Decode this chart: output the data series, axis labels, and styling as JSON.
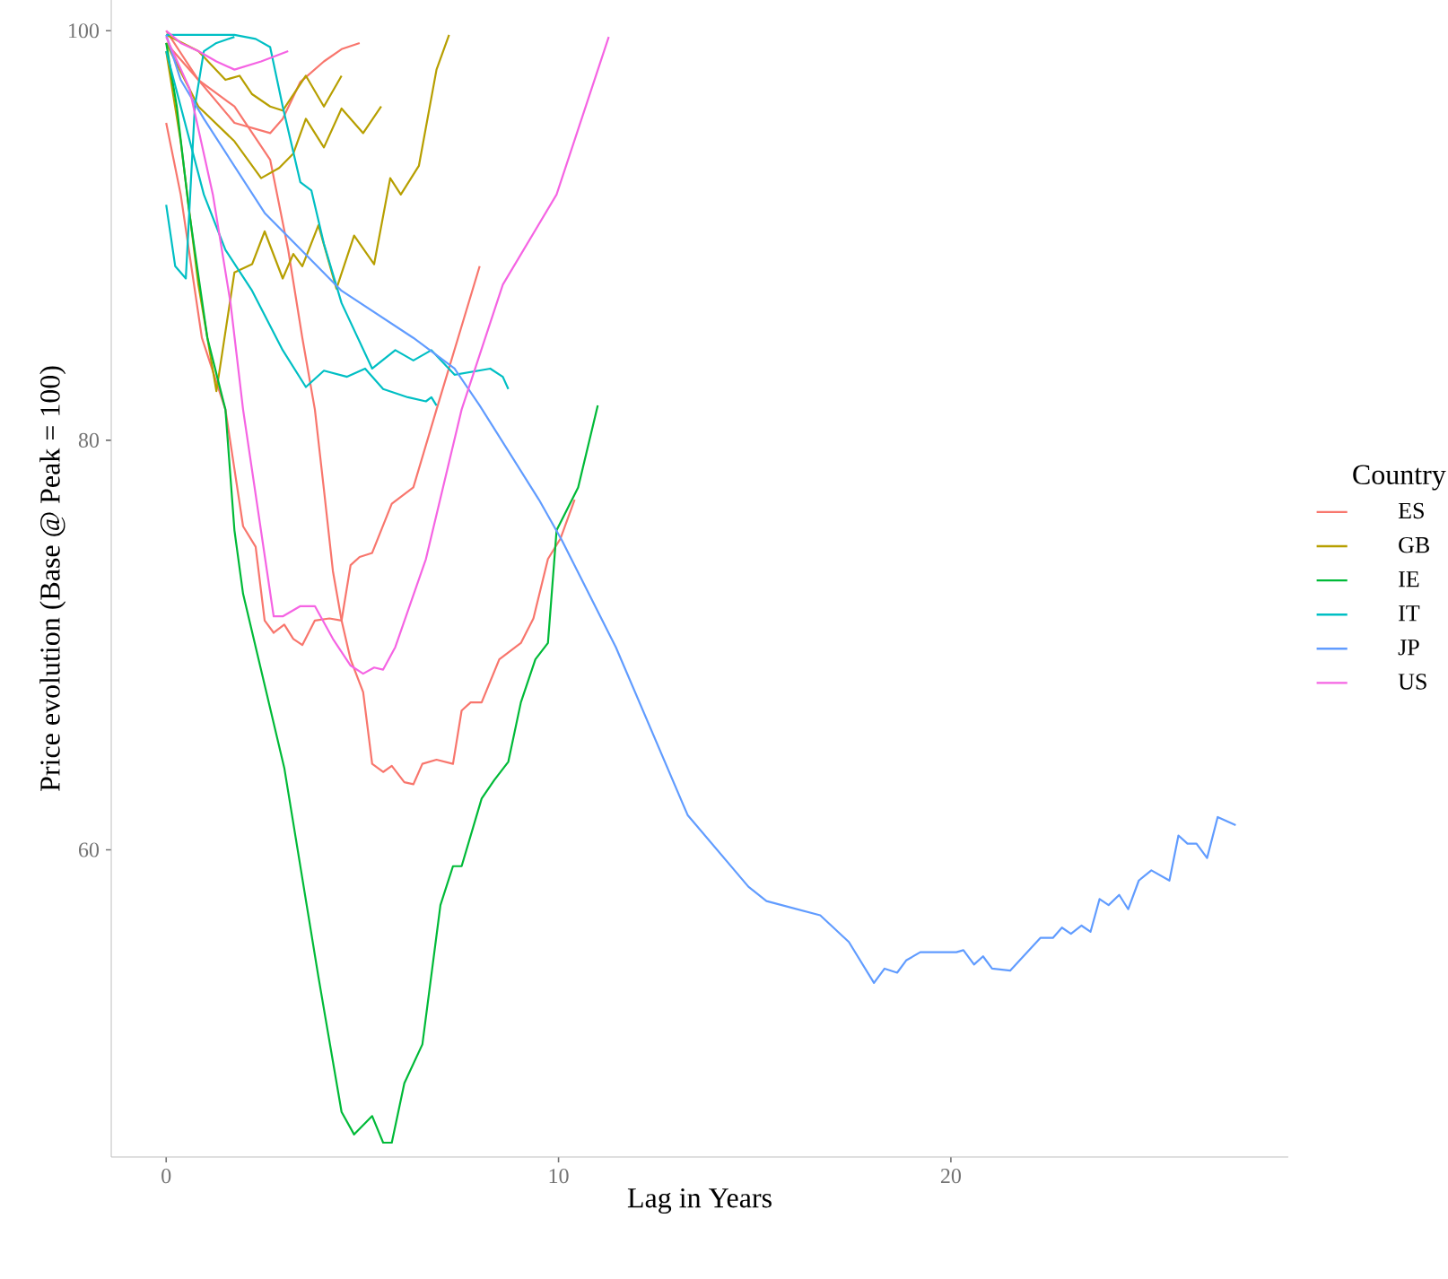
{
  "chart_data": {
    "type": "line",
    "xlabel": "Lag in Years",
    "ylabel": "Price evolution (Base @ Peak = 100)",
    "legend_title": "Country",
    "legend": "right",
    "xlim": [
      -1.4,
      28.6
    ],
    "ylim": [
      45,
      101.5
    ],
    "xticks": [
      0,
      10,
      20
    ],
    "yticks": [
      60,
      80,
      100
    ],
    "series": [
      {
        "name": "ES",
        "color": "#f8766d",
        "x": [
          0,
          0.37,
          0.91,
          1.51,
          1.96,
          2.28,
          2.51,
          2.74,
          3.01,
          3.24,
          3.47,
          3.79,
          4.16,
          4.47,
          4.7,
          4.93,
          5.25,
          5.75,
          6.3,
          6.89,
          7.44,
          7.99
        ],
        "values": [
          95.5,
          92.0,
          85.0,
          81.5,
          75.8,
          74.8,
          71.2,
          70.6,
          71.0,
          70.3,
          70.0,
          71.2,
          71.3,
          71.2,
          73.9,
          74.3,
          74.5,
          76.9,
          77.7,
          81.5,
          85.0,
          88.5
        ]
      },
      {
        "color": "#f8766d",
        "x": [
          0,
          0.82,
          1.74,
          2.65,
          3.11,
          3.47,
          3.79,
          4.02,
          4.25,
          4.47,
          4.7,
          5.02,
          5.25,
          5.53,
          5.75,
          6.07,
          6.3,
          6.53,
          6.89,
          7.31,
          7.53,
          7.76,
          8.04,
          8.49,
          9.04,
          9.36,
          9.73,
          10.05,
          10.41
        ],
        "values": [
          99.4,
          97.6,
          96.3,
          93.7,
          89.3,
          85.0,
          81.5,
          77.6,
          73.6,
          71.2,
          69.3,
          67.7,
          64.2,
          63.8,
          64.1,
          63.3,
          63.2,
          64.2,
          64.4,
          64.2,
          66.8,
          67.2,
          67.2,
          69.3,
          70.1,
          71.3,
          74.2,
          75.2,
          77.1
        ]
      },
      {
        "color": "#f8766d",
        "x": [
          0,
          0.82,
          1.74,
          2.65,
          2.97,
          3.42,
          4.02,
          4.47,
          4.93
        ],
        "values": [
          100,
          97.6,
          95.5,
          95.0,
          95.7,
          97.5,
          98.5,
          99.1,
          99.4
        ]
      },
      {
        "name": "GB",
        "color": "#b79f00",
        "x": [
          0,
          0.37,
          0.82,
          1.28,
          1.74,
          2.19,
          2.51,
          2.97,
          3.24,
          3.47,
          3.88,
          4.34,
          4.79,
          5.3,
          5.71,
          5.98,
          6.44,
          6.89,
          7.21
        ],
        "values": [
          99.0,
          94.6,
          87.6,
          82.4,
          88.2,
          88.6,
          90.2,
          87.9,
          89.1,
          88.5,
          90.5,
          87.4,
          90.0,
          88.6,
          92.8,
          92.0,
          93.4,
          98.1,
          99.8
        ]
      },
      {
        "color": "#b79f00",
        "x": [
          0,
          0.82,
          1.74,
          2.42,
          2.88,
          3.24,
          3.56,
          4.02,
          4.47,
          5.02,
          5.48
        ],
        "values": [
          99.4,
          96.3,
          94.6,
          92.8,
          93.3,
          94.0,
          95.7,
          94.3,
          96.2,
          95.0,
          96.3
        ]
      },
      {
        "color": "#b79f00",
        "x": [
          0,
          0.82,
          1.51,
          1.87,
          2.19,
          2.65,
          2.97,
          3.56,
          4.02,
          4.47
        ],
        "values": [
          99.8,
          99.0,
          97.6,
          97.8,
          96.9,
          96.3,
          96.1,
          97.8,
          96.3,
          97.8
        ]
      },
      {
        "name": "IE",
        "color": "#00ba38",
        "x": [
          0,
          0.27,
          0.59,
          1.05,
          1.51,
          1.74,
          1.96,
          3.01,
          3.88,
          4.47,
          4.79,
          5.25,
          5.53,
          5.75,
          6.07,
          6.53,
          6.99,
          7.31,
          7.53,
          8.04,
          8.36,
          8.72,
          9.04,
          9.41,
          9.73,
          9.95,
          10.5,
          11.0
        ],
        "values": [
          99.4,
          96.3,
          91.1,
          85.0,
          81.5,
          75.6,
          72.5,
          64.0,
          53.8,
          47.2,
          46.1,
          47.0,
          45.7,
          45.7,
          48.6,
          50.5,
          57.3,
          59.2,
          59.2,
          62.5,
          63.4,
          64.3,
          67.2,
          69.3,
          70.1,
          75.6,
          77.7,
          81.7
        ]
      },
      {
        "name": "IT",
        "color": "#00bfc4",
        "x": [
          0,
          0.23,
          0.5,
          0.73,
          0.96,
          1.28,
          1.74
        ],
        "values": [
          91.5,
          88.5,
          87.9,
          96.3,
          99.0,
          99.4,
          99.7
        ]
      },
      {
        "color": "#00bfc4",
        "x": [
          0,
          1.74,
          2.28,
          2.65,
          2.97,
          3.42,
          3.7,
          4.02,
          4.47,
          5.25,
          5.84,
          6.3,
          6.76,
          7.35,
          8.26,
          8.58,
          8.72
        ],
        "values": [
          99.8,
          99.8,
          99.6,
          99.2,
          96.3,
          92.6,
          92.2,
          89.6,
          86.7,
          83.5,
          84.4,
          83.9,
          84.4,
          83.2,
          83.5,
          83.1,
          82.5
        ]
      },
      {
        "color": "#00bfc4",
        "x": [
          0,
          0.37,
          0.96,
          1.51,
          2.19,
          2.97,
          3.56,
          4.02,
          4.61,
          5.07,
          5.53,
          6.16,
          6.62,
          6.76,
          6.89
        ],
        "values": [
          99.0,
          96.3,
          92.0,
          89.3,
          87.3,
          84.4,
          82.6,
          83.4,
          83.1,
          83.5,
          82.5,
          82.1,
          81.9,
          82.1,
          81.7
        ]
      },
      {
        "name": "JP",
        "color": "#619cff",
        "x": [
          0,
          0.37,
          0.96,
          2.51,
          4.47,
          6.3,
          7.35,
          7.99,
          9.5,
          10.09,
          11.46,
          13.29,
          14.84,
          15.3,
          16.67,
          17.4,
          18.04,
          18.31,
          18.63,
          18.86,
          19.22,
          20.14,
          20.32,
          20.59,
          20.82,
          21.05,
          21.51,
          22.28,
          22.6,
          22.83,
          23.06,
          23.33,
          23.56,
          23.79,
          24.02,
          24.29,
          24.52,
          24.79,
          25.11,
          25.57,
          25.8,
          26.03,
          26.26,
          26.53,
          26.8,
          27.26
        ],
        "values": [
          99.8,
          97.6,
          95.7,
          91.1,
          87.3,
          85.0,
          83.5,
          81.7,
          77.1,
          75.1,
          69.9,
          61.7,
          58.2,
          57.5,
          56.8,
          55.5,
          53.5,
          54.2,
          54.0,
          54.6,
          55.0,
          55.0,
          55.1,
          54.4,
          54.8,
          54.2,
          54.1,
          55.7,
          55.7,
          56.2,
          55.9,
          56.3,
          56.0,
          57.6,
          57.3,
          57.8,
          57.1,
          58.5,
          59.0,
          58.5,
          60.7,
          60.3,
          60.3,
          59.6,
          61.6,
          61.2
        ]
      },
      {
        "name": "US",
        "color": "#f564e3",
        "x": [
          0,
          0.59,
          1.19,
          1.64,
          1.96,
          2.74,
          2.97,
          3.42,
          3.79,
          4.25,
          4.7,
          5.02,
          5.3,
          5.53,
          5.84,
          6.62,
          7.53,
          8.58,
          9.95,
          11.28
        ],
        "values": [
          99.7,
          97.2,
          92.0,
          86.7,
          81.5,
          71.4,
          71.4,
          71.9,
          71.9,
          70.3,
          69.0,
          68.6,
          68.9,
          68.8,
          69.9,
          74.2,
          81.5,
          87.6,
          92.0,
          99.7
        ]
      },
      {
        "color": "#f564e3",
        "x": [
          0,
          0.37,
          0.82,
          1.28,
          1.74,
          2.42,
          3.11
        ],
        "values": [
          100,
          99.4,
          99.0,
          98.5,
          98.1,
          98.5,
          99.0
        ]
      }
    ]
  }
}
